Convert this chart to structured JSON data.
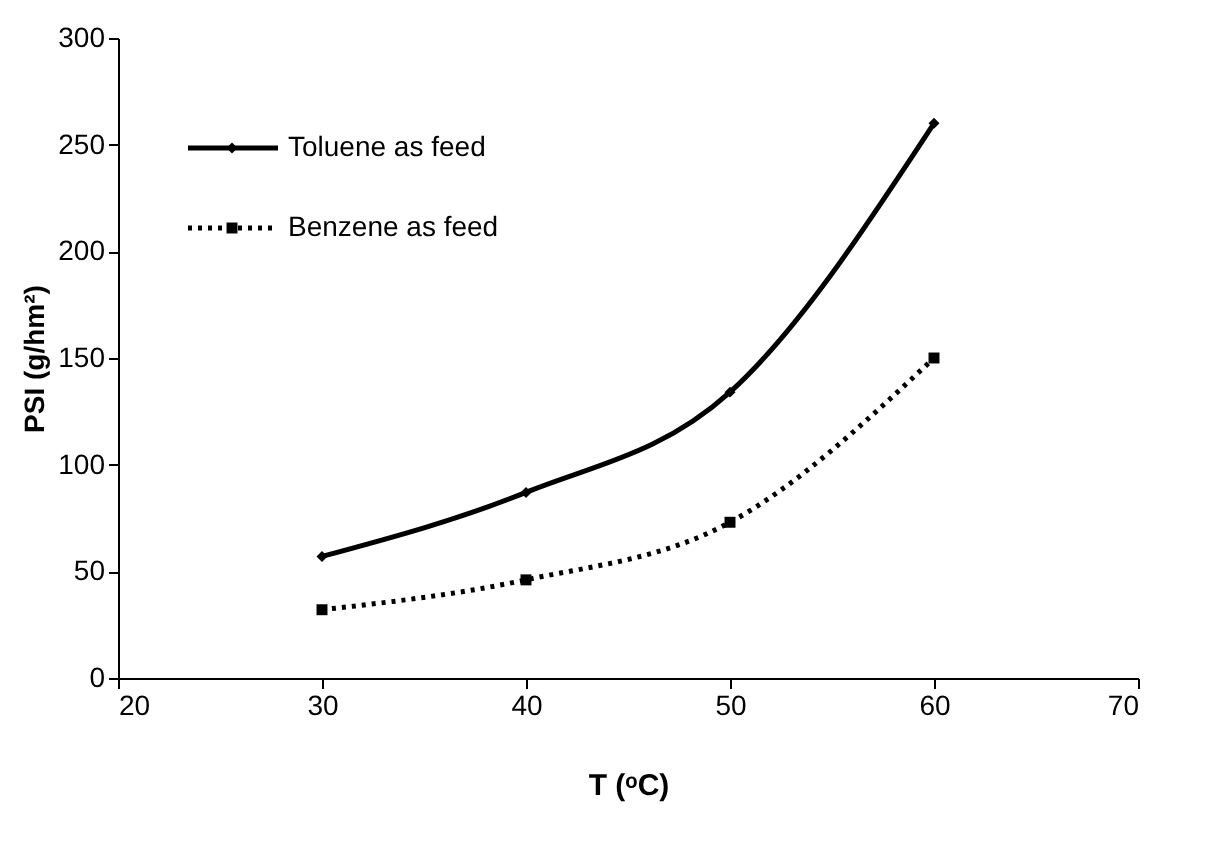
{
  "chart_data": {
    "type": "line",
    "xlabel": "T (ᵒC)",
    "ylabel": "PSI (g/hm²)",
    "x": [
      30,
      40,
      50,
      60
    ],
    "series": [
      {
        "name": "Toluene as  feed",
        "color": "#000000",
        "values": [
          57,
          87,
          134,
          260
        ],
        "marker": "diamond",
        "line_style": "solid"
      },
      {
        "name": "Benzene as  feed",
        "color": "#000000",
        "values": [
          32,
          46,
          73,
          150
        ],
        "marker": "square",
        "line_style": "dotted"
      }
    ],
    "xlim": [
      20,
      70
    ],
    "xticks": [
      20,
      30,
      40,
      50,
      60,
      70
    ],
    "ylim": [
      0,
      300
    ],
    "yticks": [
      0,
      50,
      100,
      150,
      200,
      250,
      300
    ],
    "grid": false,
    "legend": "top left"
  }
}
